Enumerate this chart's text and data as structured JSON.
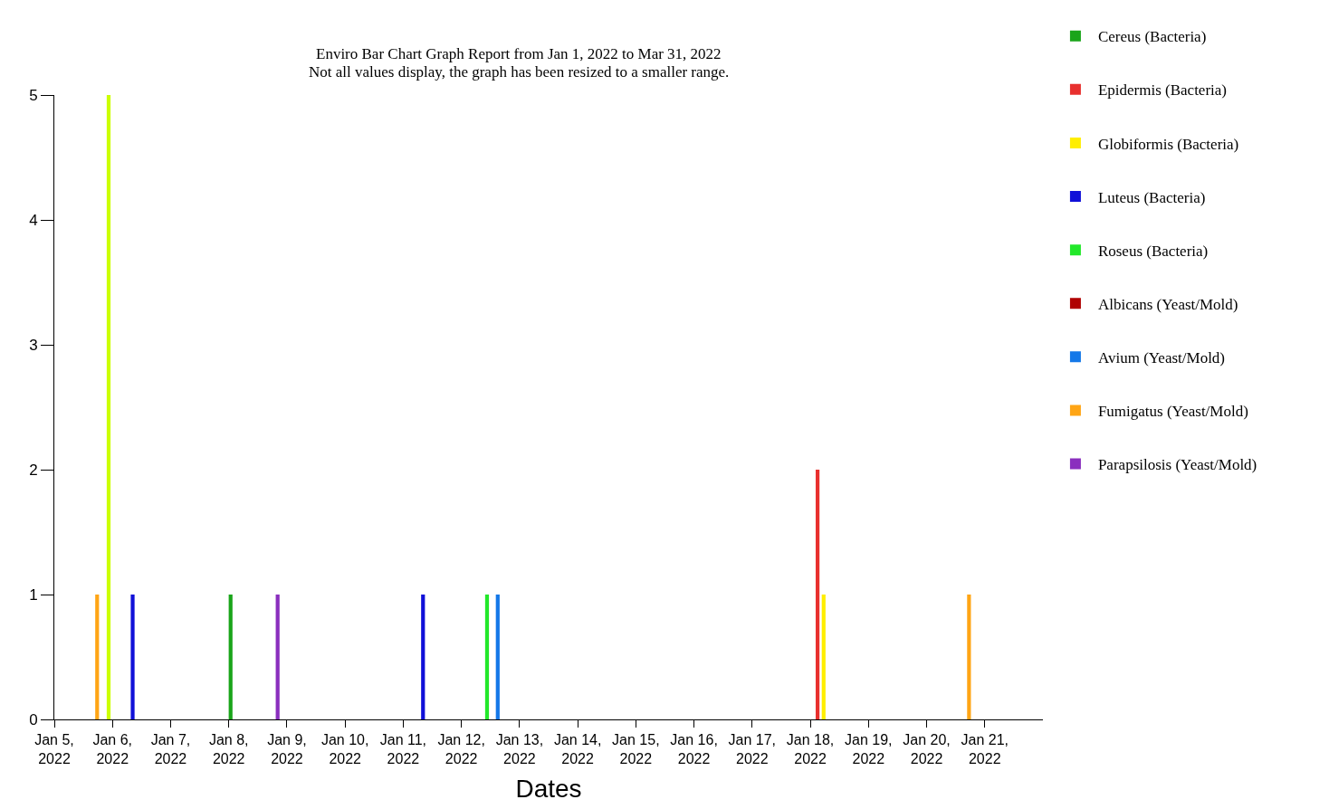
{
  "chart_data": {
    "type": "bar",
    "subtitle": "Enviro Bar Chart Graph Report from Jan 1, 2022 to Mar 31, 2022",
    "annotations": [
      "Not all values display, the graph has been resized to a smaller range."
    ],
    "xlabel": "Dates",
    "series": [
      {
        "name": "Cereus (Bacteria)",
        "color": "#1aa51a",
        "x": [
          "2022-01-08T00:45"
        ],
        "values": [
          1
        ]
      },
      {
        "name": "Epidermis (Bacteria)",
        "color": "#e8302e",
        "x": [
          "2022-01-18T03:00"
        ],
        "values": [
          2
        ]
      },
      {
        "name": "Globiformis (Bacteria)",
        "color": "#ffee00",
        "x": [
          "2022-01-18T05:30"
        ],
        "values": [
          1
        ]
      },
      {
        "name": "Luteus (Bacteria)",
        "color": "#1010d8",
        "x": [
          "2022-01-06T08:20",
          "2022-01-11T08:10"
        ],
        "values": [
          1,
          1
        ]
      },
      {
        "name": "Roseus (Bacteria)",
        "color": "#22e82a",
        "x": [
          "2022-01-12T10:35"
        ],
        "values": [
          1
        ]
      },
      {
        "name": "Albicans (Yeast/Mold)",
        "color": "#b00000"
      },
      {
        "name": "Avium (Yeast/Mold)",
        "color": "#1478e8",
        "x": [
          "2022-01-12T15:00"
        ],
        "values": [
          1
        ]
      },
      {
        "name": "Fumigatus (Yeast/Mold)",
        "color": "#ffa515",
        "x": [
          "2022-01-05T17:40",
          "2022-01-20T17:30"
        ],
        "values": [
          1,
          1
        ]
      },
      {
        "name": "Parapsilosis (Yeast/Mold)",
        "color": "#8a2fbe",
        "x": [
          "2022-01-08T20:10"
        ],
        "values": [
          1
        ]
      },
      {
        "color": "#ccff00",
        "x": [
          "2022-01-05T22:25"
        ],
        "values": [
          5
        ]
      }
    ],
    "xlim": [
      "2022-01-05",
      "2022-01-22"
    ],
    "xticks": [
      {
        "value": "2022-01-05",
        "label": "Jan 5, 2022"
      },
      {
        "value": "2022-01-06",
        "label": "Jan 6, 2022"
      },
      {
        "value": "2022-01-07",
        "label": "Jan 7, 2022"
      },
      {
        "value": "2022-01-08",
        "label": "Jan 8, 2022"
      },
      {
        "value": "2022-01-09",
        "label": "Jan 9, 2022"
      },
      {
        "value": "2022-01-10",
        "label": "Jan 10, 2022"
      },
      {
        "value": "2022-01-11",
        "label": "Jan 11, 2022"
      },
      {
        "value": "2022-01-12",
        "label": "Jan 12, 2022"
      },
      {
        "value": "2022-01-13",
        "label": "Jan 13, 2022"
      },
      {
        "value": "2022-01-14",
        "label": "Jan 14, 2022"
      },
      {
        "value": "2022-01-15",
        "label": "Jan 15, 2022"
      },
      {
        "value": "2022-01-16",
        "label": "Jan 16, 2022"
      },
      {
        "value": "2022-01-17",
        "label": "Jan 17, 2022"
      },
      {
        "value": "2022-01-18",
        "label": "Jan 18, 2022"
      },
      {
        "value": "2022-01-19",
        "label": "Jan 19, 2022"
      },
      {
        "value": "2022-01-20",
        "label": "Jan 20, 2022"
      },
      {
        "value": "2022-01-21",
        "label": "Jan 21, 2022"
      }
    ],
    "ylim": [
      0,
      5
    ],
    "yticks": [
      0,
      1,
      2,
      3,
      4,
      5
    ],
    "legend": "top right"
  }
}
